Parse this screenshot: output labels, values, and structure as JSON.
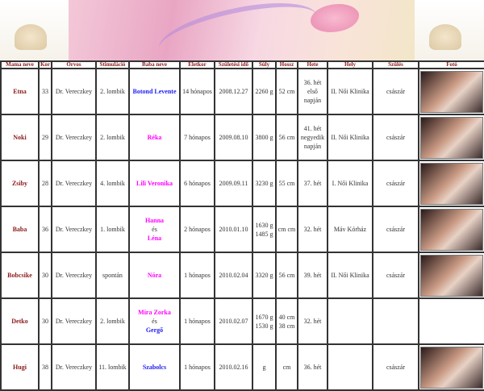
{
  "headers": [
    "Mama neve",
    "Kor",
    "Orvos",
    "Stimuláció",
    "Baba neve",
    "Életkor",
    "Születési idő",
    "Súly",
    "Hossz",
    "Hete",
    "Hely",
    "Szülés",
    "Fotó"
  ],
  "rows": [
    {
      "mama": "Etna",
      "kor": "33",
      "orvos": "Dr. Vereczkey",
      "stim": "2. lombik",
      "baba": [
        {
          "name": "Botond Levente",
          "color": "blue"
        }
      ],
      "eletkor": "14 hónapos",
      "szul": "2008.12.27",
      "suly": "2260 g",
      "hossz": "52 cm",
      "hete": "36. hét első napján",
      "hely": "II. Női Klinika",
      "szules": "császár",
      "foto": true
    },
    {
      "mama": "Noki",
      "kor": "29",
      "orvos": "Dr. Vereczkey",
      "stim": "2. lombik",
      "baba": [
        {
          "name": "Réka",
          "color": "pink"
        }
      ],
      "eletkor": "7 hónapos",
      "szul": "2009.08.10",
      "suly": "3800 g",
      "hossz": "56 cm",
      "hete": "41. hét negyedik napján",
      "hely": "II. Női Klinika",
      "szules": "császár",
      "foto": true
    },
    {
      "mama": "Zsiby",
      "kor": "28",
      "orvos": "Dr. Vereczkey",
      "stim": "4. lombik",
      "baba": [
        {
          "name": "Lili Veronika",
          "color": "pink"
        }
      ],
      "eletkor": "6 hónapos",
      "szul": "2009.09.11",
      "suly": "3230 g",
      "hossz": "55 cm",
      "hete": "37. hét",
      "hely": "I. Női Klinika",
      "szules": "császár",
      "foto": true
    },
    {
      "mama": "Baba",
      "kor": "36",
      "orvos": "Dr. Vereczkey",
      "stim": "1. lombik",
      "baba": [
        {
          "name": "Hanna",
          "color": "pink"
        },
        {
          "name": "és",
          "color": ""
        },
        {
          "name": "Léna",
          "color": "pink"
        }
      ],
      "eletkor": "2 hónapos",
      "szul": "2010.01.10",
      "suly": "1630 g 1485 g",
      "hossz": "cm cm",
      "hete": "32. hét",
      "hely": "Máv Kórház",
      "szules": "császár",
      "foto": true
    },
    {
      "mama": "Bobcsike",
      "kor": "30",
      "orvos": "Dr. Vereczkey",
      "stim": "spontán",
      "baba": [
        {
          "name": "Nóra",
          "color": "pink"
        }
      ],
      "eletkor": "1 hónapos",
      "szul": "2010.02.04",
      "suly": "3320 g",
      "hossz": "56 cm",
      "hete": "39. hét",
      "hely": "II. Női Klinika",
      "szules": "császár",
      "foto": true
    },
    {
      "mama": "Detko",
      "kor": "30",
      "orvos": "Dr. Vereczkey",
      "stim": "2. lombik",
      "baba": [
        {
          "name": "Míra Zorka",
          "color": "pink"
        },
        {
          "name": "és",
          "color": ""
        },
        {
          "name": "Gergő",
          "color": "blue"
        }
      ],
      "eletkor": "1 hónapos",
      "szul": "2010.02.07",
      "suly": "1670 g 1530 g",
      "hossz": "40 cm 38 cm",
      "hete": "32. hét",
      "hely": "",
      "szules": "",
      "foto": false
    },
    {
      "mama": "Hugi",
      "kor": "38",
      "orvos": "Dr. Vereczkey",
      "stim": "11. lombik",
      "baba": [
        {
          "name": "Szabolcs",
          "color": "blue"
        }
      ],
      "eletkor": "1 hónapos",
      "szul": "2010.02.16",
      "suly": "g",
      "hossz": "cm",
      "hete": "36. hét",
      "hely": "",
      "szules": "császár",
      "foto": true
    }
  ]
}
